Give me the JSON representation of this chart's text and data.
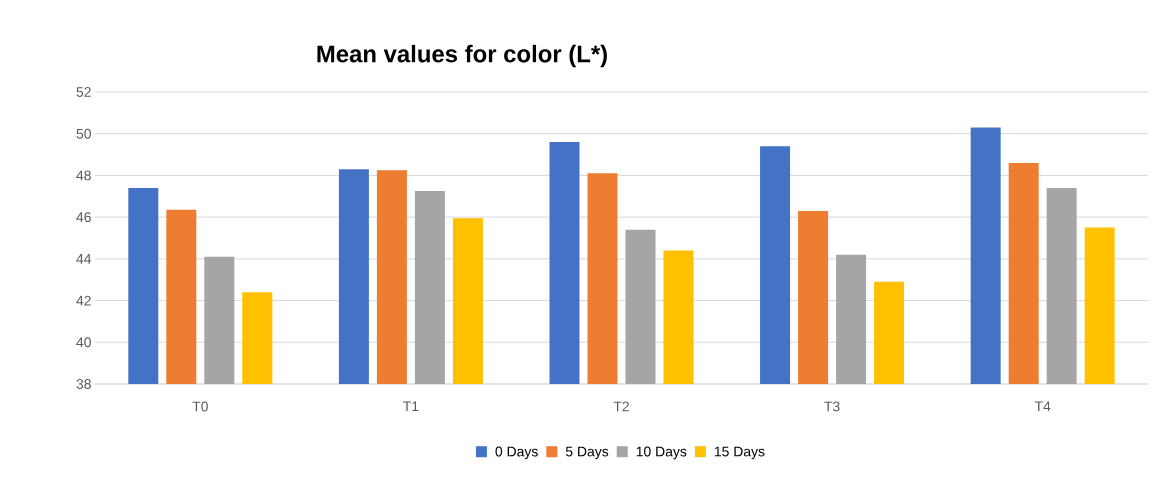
{
  "chart_data": {
    "type": "bar",
    "title": "Mean values for color (L*)",
    "categories": [
      "T0",
      "T1",
      "T2",
      "T3",
      "T4"
    ],
    "series": [
      {
        "name": "0 Days",
        "color": "#4472c4",
        "values": [
          47.4,
          48.3,
          49.6,
          49.4,
          50.3
        ]
      },
      {
        "name": "5 Days",
        "color": "#ed7d31",
        "values": [
          46.35,
          48.25,
          48.1,
          46.3,
          48.6
        ]
      },
      {
        "name": "10 Days",
        "color": "#a5a5a5",
        "values": [
          44.1,
          47.25,
          45.4,
          44.2,
          47.4
        ]
      },
      {
        "name": "15 Days",
        "color": "#ffc000",
        "values": [
          42.4,
          45.95,
          44.4,
          42.9,
          45.5
        ]
      }
    ],
    "ylim": [
      38,
      52
    ],
    "yticks": [
      38,
      40,
      42,
      44,
      46,
      48,
      50,
      52
    ],
    "grid": "y",
    "legend": "bottom"
  }
}
